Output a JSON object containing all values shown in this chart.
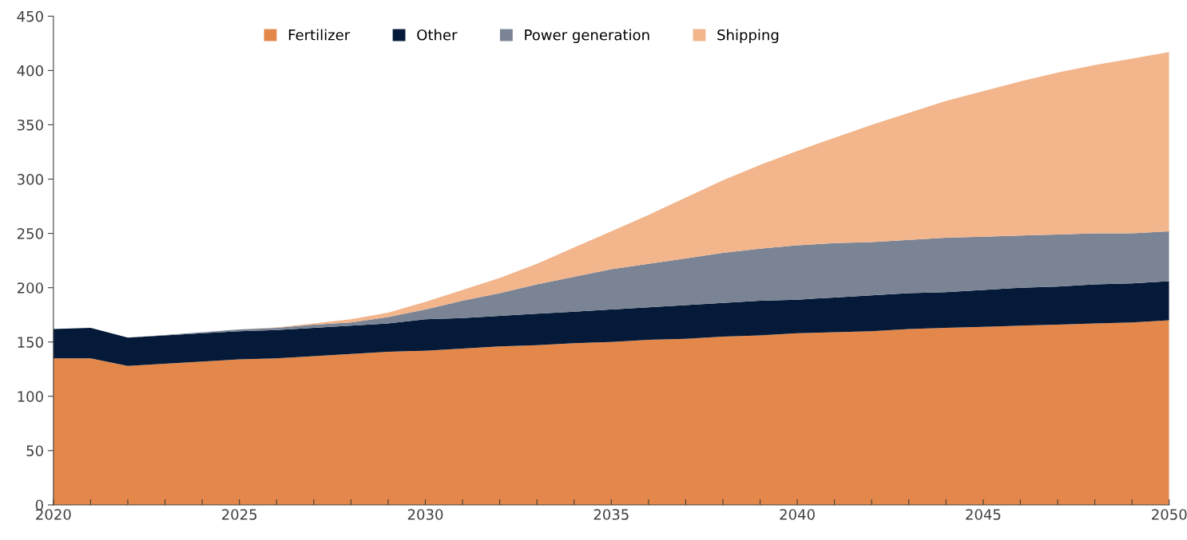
{
  "chart_data": {
    "type": "area",
    "stacked": true,
    "x": [
      2020,
      2021,
      2022,
      2023,
      2024,
      2025,
      2026,
      2027,
      2028,
      2029,
      2030,
      2031,
      2032,
      2033,
      2034,
      2035,
      2036,
      2037,
      2038,
      2039,
      2040,
      2041,
      2042,
      2043,
      2044,
      2045,
      2046,
      2047,
      2048,
      2049,
      2050
    ],
    "series": [
      {
        "name": "Fertilizer",
        "color": "#e3884a",
        "values": [
          135,
          135,
          128,
          130,
          132,
          134,
          135,
          137,
          139,
          141,
          142,
          144,
          146,
          147,
          149,
          150,
          152,
          153,
          155,
          156,
          158,
          159,
          160,
          162,
          163,
          164,
          165,
          166,
          167,
          168,
          170
        ]
      },
      {
        "name": "Other",
        "color": "#041a38",
        "values": [
          27,
          28,
          26,
          26,
          26,
          26,
          26,
          26,
          26,
          26,
          29,
          28,
          28,
          29,
          29,
          30,
          30,
          31,
          31,
          32,
          31,
          32,
          33,
          33,
          33,
          34,
          35,
          35,
          36,
          36,
          36
        ]
      },
      {
        "name": "Power generation",
        "color": "#7b8494",
        "values": [
          0,
          0,
          0,
          0.5,
          1,
          1.5,
          2,
          3,
          3,
          6,
          9,
          16,
          21,
          27,
          32,
          37,
          40,
          43,
          46,
          48,
          50,
          50,
          49,
          49,
          50,
          49,
          48,
          48,
          47,
          46,
          46
        ]
      },
      {
        "name": "Shipping",
        "color": "#f2b58c",
        "values": [
          0,
          0,
          0,
          0,
          0,
          0,
          0.5,
          1,
          3,
          4,
          7,
          10,
          14,
          19,
          27,
          35,
          45,
          56,
          67,
          77,
          87,
          97,
          108,
          117,
          126,
          134,
          142,
          149,
          155,
          161,
          165
        ]
      }
    ],
    "xlim": [
      2020,
      2050
    ],
    "xticks": [
      2020,
      {
        "value": 2021,
        "label": null
      },
      {
        "value": 2022,
        "label": null
      },
      {
        "value": 2023,
        "label": null
      },
      {
        "value": 2024,
        "label": null
      },
      2025,
      {
        "value": 2026,
        "label": null
      },
      {
        "value": 2027,
        "label": null
      },
      {
        "value": 2028,
        "label": null
      },
      {
        "value": 2029,
        "label": null
      },
      2030,
      {
        "value": 2031,
        "label": null
      },
      {
        "value": 2032,
        "label": null
      },
      {
        "value": 2033,
        "label": null
      },
      {
        "value": 2034,
        "label": null
      },
      2035,
      {
        "value": 2036,
        "label": null
      },
      {
        "value": 2037,
        "label": null
      },
      {
        "value": 2038,
        "label": null
      },
      {
        "value": 2039,
        "label": null
      },
      2040,
      {
        "value": 2041,
        "label": null
      },
      {
        "value": 2042,
        "label": null
      },
      {
        "value": 2043,
        "label": null
      },
      {
        "value": 2044,
        "label": null
      },
      2045,
      {
        "value": 2046,
        "label": null
      },
      {
        "value": 2047,
        "label": null
      },
      {
        "value": 2048,
        "label": null
      },
      {
        "value": 2049,
        "label": null
      },
      2050
    ],
    "ylim": [
      0,
      450
    ],
    "yticks": [
      0,
      50,
      100,
      150,
      200,
      250,
      300,
      350,
      400,
      450
    ],
    "grid": false,
    "legend": "top"
  }
}
